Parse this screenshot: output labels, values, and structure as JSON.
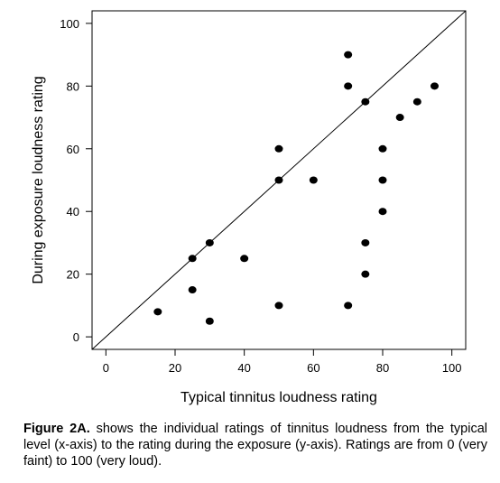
{
  "chart_data": {
    "type": "scatter",
    "xlabel": "Typical tinnitus loudness rating",
    "ylabel": "During exposure loudness rating",
    "xlim": [
      -4,
      104
    ],
    "ylim": [
      -4,
      104
    ],
    "xticks": [
      0,
      20,
      40,
      60,
      80,
      100
    ],
    "yticks": [
      0,
      20,
      40,
      60,
      80,
      100
    ],
    "reference_line": "identity (y = x)",
    "grid": false,
    "points": [
      {
        "x": 15,
        "y": 8
      },
      {
        "x": 25,
        "y": 25
      },
      {
        "x": 25,
        "y": 15
      },
      {
        "x": 30,
        "y": 30
      },
      {
        "x": 30,
        "y": 5
      },
      {
        "x": 40,
        "y": 25
      },
      {
        "x": 50,
        "y": 60
      },
      {
        "x": 50,
        "y": 50
      },
      {
        "x": 50,
        "y": 10
      },
      {
        "x": 60,
        "y": 50
      },
      {
        "x": 70,
        "y": 90
      },
      {
        "x": 70,
        "y": 80
      },
      {
        "x": 70,
        "y": 10
      },
      {
        "x": 75,
        "y": 75
      },
      {
        "x": 75,
        "y": 30
      },
      {
        "x": 75,
        "y": 20
      },
      {
        "x": 80,
        "y": 60
      },
      {
        "x": 80,
        "y": 50
      },
      {
        "x": 80,
        "y": 40
      },
      {
        "x": 85,
        "y": 70
      },
      {
        "x": 90,
        "y": 75
      },
      {
        "x": 95,
        "y": 80
      }
    ]
  },
  "caption": {
    "label": "Figure 2A.",
    "text": " shows the individual ratings of tinnitus loudness from the typical level (x-axis) to the rating during the exposure (y-axis). Ratings are from 0 (very faint) to 100 (very loud)."
  }
}
